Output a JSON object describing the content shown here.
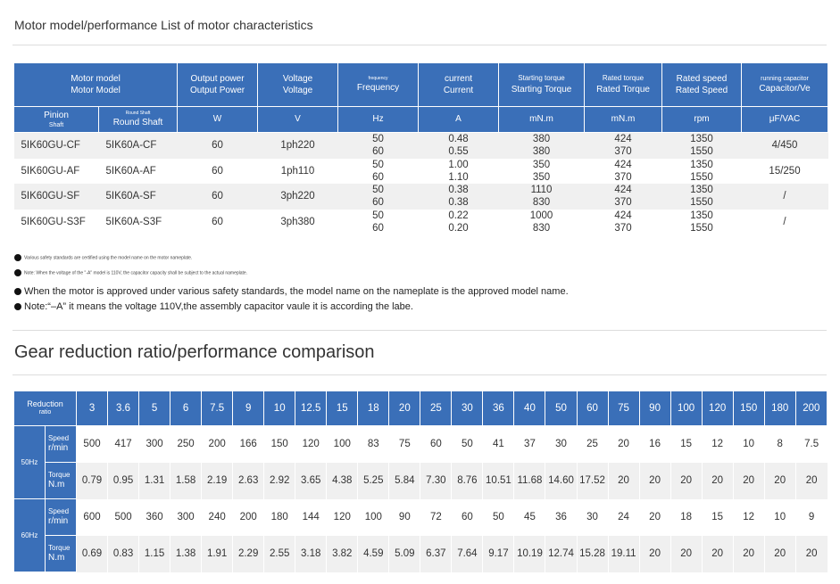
{
  "section1": {
    "title": "Motor model/performance List of motor characteristics",
    "headers": {
      "motor_model_1": "Motor model",
      "motor_model_2": "Motor Model",
      "output_power_1": "Output power",
      "output_power_2": "Output Power",
      "voltage_1": "Voltage",
      "voltage_2": "Voltage",
      "frequency_1": "frequency",
      "frequency_2": "Frequency",
      "current_1": "current",
      "current_2": "Current",
      "starting_torque_1": "Starting torque",
      "starting_torque_2": "Starting Torque",
      "rated_torque_1": "Rated torque",
      "rated_torque_2": "Rated Torque",
      "rated_speed_1": "Rated speed",
      "rated_speed_2": "Rated Speed",
      "capacitor_1": "running capacitor",
      "capacitor_2": "Capacitor/Ve"
    },
    "units": {
      "pinion": "Pinion",
      "pinion_sub": "Shaft",
      "round_small": "Round Shaft",
      "round": "Round Shaft",
      "power": "W",
      "voltage": "V",
      "freq": "Hz",
      "current": "A",
      "start_torque": "mN.m",
      "rated_torque": "mN.m",
      "speed": "rpm",
      "cap": "μF/VAC"
    },
    "rows": [
      {
        "pinion": "5IK60GU-CF",
        "round": "5IK60A-CF",
        "power": "60",
        "voltage": "1ph220",
        "hz": [
          "50",
          "60"
        ],
        "current": [
          "0.48",
          "0.55"
        ],
        "start": [
          "380",
          "380"
        ],
        "rated": [
          "424",
          "370"
        ],
        "speed": [
          "1350",
          "1550"
        ],
        "cap": "4/450"
      },
      {
        "pinion": "5IK60GU-AF",
        "round": "5IK60A-AF",
        "power": "60",
        "voltage": "1ph110",
        "hz": [
          "50",
          "60"
        ],
        "current": [
          "1.00",
          "1.10"
        ],
        "start": [
          "350",
          "350"
        ],
        "rated": [
          "424",
          "370"
        ],
        "speed": [
          "1350",
          "1550"
        ],
        "cap": "15/250"
      },
      {
        "pinion": "5IK60GU-SF",
        "round": "5IK60A-SF",
        "power": "60",
        "voltage": "3ph220",
        "hz": [
          "50",
          "60"
        ],
        "current": [
          "0.38",
          "0.38"
        ],
        "start": [
          "1110",
          "830"
        ],
        "rated": [
          "424",
          "370"
        ],
        "speed": [
          "1350",
          "1550"
        ],
        "cap": "/"
      },
      {
        "pinion": "5IK60GU-S3F",
        "round": "5IK60A-S3F",
        "power": "60",
        "voltage": "3ph380",
        "hz": [
          "50",
          "60"
        ],
        "current": [
          "0.22",
          "0.20"
        ],
        "start": [
          "1000",
          "830"
        ],
        "rated": [
          "424",
          "370"
        ],
        "speed": [
          "1350",
          "1550"
        ],
        "cap": "/"
      }
    ],
    "notes": {
      "tiny1": "Various safety standards are certified using the model name on the motor nameplate.",
      "tiny2": "Note: When the voltage of the \"-A\" model is 110V, the capacitor capacity shall be subject to the actual nameplate.",
      "note1": "When the motor is approved under various safety standards, the model name on the nameplate is the approved model name.",
      "note2": "Note:“–A” it means the voltage 110V,the assembly capacitor vaule it is according the labe."
    }
  },
  "section2": {
    "title": "Gear reduction ratio/performance comparison",
    "corner_1": "Reduction",
    "corner_2": "ratio",
    "ratios": [
      "3",
      "3.6",
      "5",
      "6",
      "7.5",
      "9",
      "10",
      "12.5",
      "15",
      "18",
      "20",
      "25",
      "30",
      "36",
      "40",
      "50",
      "60",
      "75",
      "90",
      "100",
      "120",
      "150",
      "180",
      "200"
    ],
    "hz50": "50Hz",
    "hz60": "60Hz",
    "speed_label": "Speed",
    "speed_unit": "r/min",
    "torque_label": "Torque",
    "torque_unit": "N.m",
    "speed50": [
      "500",
      "417",
      "300",
      "250",
      "200",
      "166",
      "150",
      "120",
      "100",
      "83",
      "75",
      "60",
      "50",
      "41",
      "37",
      "30",
      "25",
      "20",
      "16",
      "15",
      "12",
      "10",
      "8",
      "7.5"
    ],
    "torque50": [
      "0.79",
      "0.95",
      "1.31",
      "1.58",
      "2.19",
      "2.63",
      "2.92",
      "3.65",
      "4.38",
      "5.25",
      "5.84",
      "7.30",
      "8.76",
      "10.51",
      "11.68",
      "14.60",
      "17.52",
      "20",
      "20",
      "20",
      "20",
      "20",
      "20",
      "20"
    ],
    "speed60": [
      "600",
      "500",
      "360",
      "300",
      "240",
      "200",
      "180",
      "144",
      "120",
      "100",
      "90",
      "72",
      "60",
      "50",
      "45",
      "36",
      "30",
      "24",
      "20",
      "18",
      "15",
      "12",
      "10",
      "9"
    ],
    "torque60": [
      "0.69",
      "0.83",
      "1.15",
      "1.38",
      "1.91",
      "2.29",
      "2.55",
      "3.18",
      "3.82",
      "4.59",
      "5.09",
      "6.37",
      "7.64",
      "9.17",
      "10.19",
      "12.74",
      "15.28",
      "19.11",
      "20",
      "20",
      "20",
      "20",
      "20",
      "20"
    ]
  }
}
